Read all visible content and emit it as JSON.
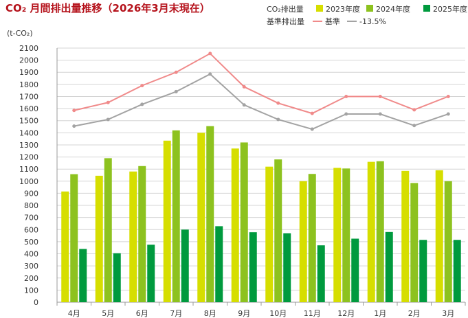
{
  "chart_data": {
    "type": "bar",
    "title": "CO₂ 月間排出量推移（2026年3月末現在）",
    "unit_label": "(t-CO₂)",
    "categories": [
      "4月",
      "5月",
      "6月",
      "7月",
      "8月",
      "9月",
      "10月",
      "11月",
      "12月",
      "1月",
      "2月",
      "3月"
    ],
    "ylim": [
      0,
      2100
    ],
    "yticks": [
      0,
      100,
      200,
      300,
      400,
      500,
      600,
      700,
      800,
      900,
      1000,
      1100,
      1200,
      1300,
      1400,
      1500,
      1600,
      1700,
      1800,
      1900,
      2000,
      2100
    ],
    "grid": true,
    "bar_group_label": "CO₂排出量",
    "line_group_label": "基準排出量",
    "series": [
      {
        "name": "2023年度",
        "kind": "bar",
        "color": "#d6de00",
        "values": [
          915,
          1045,
          1080,
          1335,
          1400,
          1270,
          1120,
          1000,
          1110,
          1160,
          1085,
          1090
        ]
      },
      {
        "name": "2024年度",
        "kind": "bar",
        "color": "#8dc21f",
        "values": [
          1058,
          1190,
          1125,
          1420,
          1455,
          1320,
          1180,
          1060,
          1105,
          1165,
          985,
          1000
        ]
      },
      {
        "name": "2025年度",
        "kind": "bar",
        "color": "#009a3e",
        "values": [
          440,
          405,
          475,
          600,
          628,
          578,
          570,
          470,
          525,
          580,
          515,
          515
        ]
      },
      {
        "name": "基準",
        "kind": "line",
        "color": "#f08a8a",
        "values": [
          1585,
          1650,
          1790,
          1900,
          2055,
          1780,
          1645,
          1560,
          1700,
          1700,
          1590,
          1700
        ]
      },
      {
        "name": "-13.5%",
        "kind": "line",
        "color": "#a3a3a3",
        "values": [
          1455,
          1510,
          1635,
          1740,
          1885,
          1630,
          1510,
          1430,
          1555,
          1555,
          1460,
          1555
        ]
      }
    ]
  }
}
